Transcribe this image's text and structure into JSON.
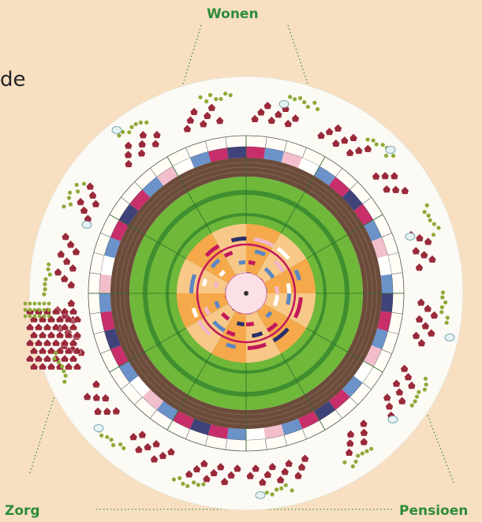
{
  "labels": {
    "top": "Wonen",
    "bottom_left": "Zorg",
    "bottom_right": "Pensioen",
    "text_fragment": "de"
  },
  "colors": {
    "background": "#f8dfc1",
    "label_green": "#2e8b3a",
    "dotted_line": "#3b8f4a",
    "disc_white": "#fbfaf4",
    "ring_brown": "#6b4b3a",
    "band_dark_green": "#3f8f2f",
    "field_green": "#6fb83a",
    "core_orange": "#f6a94a",
    "house_red": "#9a2a3a",
    "tree_green": "#8faa3a",
    "accent_blue": "#5b86c4",
    "accent_magenta": "#c2185b",
    "accent_navy": "#2a2f6b",
    "accent_pink": "#f1b7c8"
  },
  "icons": [
    "house-cluster-icon",
    "tree-cluster-icon",
    "wind-turbine-icon",
    "water-pond-icon"
  ]
}
